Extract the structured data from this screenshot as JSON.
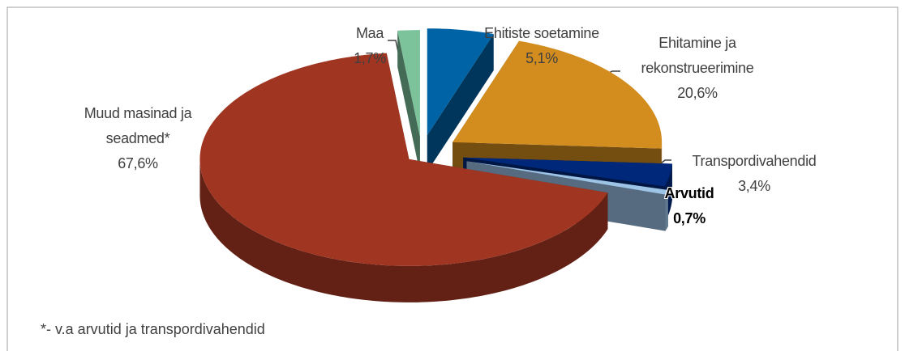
{
  "chart_data": {
    "type": "pie3d",
    "categories": [
      "Maa",
      "Ehitiste soetamine",
      "Ehitamine ja rekonstrueerimine",
      "Transpordivahendid",
      "Arvutid",
      "Muud masinad ja seadmed*"
    ],
    "values": [
      1.7,
      5.1,
      20.6,
      3.4,
      0.7,
      67.6
    ],
    "value_labels": [
      "1,7%",
      "5,1%",
      "20,6%",
      "3,4%",
      "0,7%",
      "67,6%"
    ],
    "colors": [
      "#7cc39c",
      "#0063a6",
      "#d38d1f",
      "#00287a",
      "#9dc3e6",
      "#a03622"
    ],
    "footnote": "*-  v.a arvutid ja transpordivahendid"
  }
}
